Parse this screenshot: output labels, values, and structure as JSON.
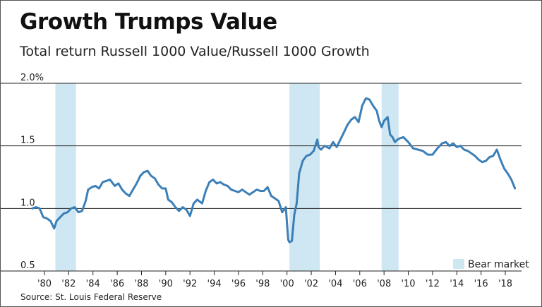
{
  "title": "Growth Trumps Value",
  "subtitle": "Total return Russell 1000 Value/Russell 1000 Growth",
  "source": "Source: St. Louis Federal Reserve",
  "colors": {
    "line": "#3b7fb8",
    "bear_band": "#cfe7f3",
    "grid": "#222222"
  },
  "chart_data": {
    "type": "line",
    "title": "Growth Trumps Value",
    "subtitle": "Total return Russell 1000 Value/Russell 1000 Growth",
    "xlabel": "",
    "ylabel": "",
    "xlim": [
      1979,
      2019.5
    ],
    "ylim": [
      0.5,
      2.0
    ],
    "y_ticks": [
      {
        "value": 2.0,
        "label": "2.0%"
      },
      {
        "value": 1.5,
        "label": "1.5"
      },
      {
        "value": 1.0,
        "label": "1.0"
      },
      {
        "value": 0.5,
        "label": "0.5"
      }
    ],
    "x_ticks": [
      {
        "value": 1980,
        "label": "'80"
      },
      {
        "value": 1982,
        "label": "'82"
      },
      {
        "value": 1984,
        "label": "'84"
      },
      {
        "value": 1986,
        "label": "'86"
      },
      {
        "value": 1988,
        "label": "'88"
      },
      {
        "value": 1990,
        "label": "'90"
      },
      {
        "value": 1992,
        "label": "'92"
      },
      {
        "value": 1994,
        "label": "'94"
      },
      {
        "value": 1996,
        "label": "'96"
      },
      {
        "value": 1998,
        "label": "'98"
      },
      {
        "value": 2000,
        "label": "'00"
      },
      {
        "value": 2002,
        "label": "'02"
      },
      {
        "value": 2004,
        "label": "'04"
      },
      {
        "value": 2006,
        "label": "'06"
      },
      {
        "value": 2008,
        "label": "'08"
      },
      {
        "value": 2010,
        "label": "'10"
      },
      {
        "value": 2012,
        "label": "'12"
      },
      {
        "value": 2014,
        "label": "'14"
      },
      {
        "value": 2016,
        "label": "'16"
      },
      {
        "value": 2018,
        "label": "'18"
      }
    ],
    "grid": "horizontal",
    "legend": {
      "position": "bottom-right",
      "entries": [
        "Bear market"
      ]
    },
    "bear_markets": [
      {
        "start": 1980.9,
        "end": 1982.6
      },
      {
        "start": 2000.2,
        "end": 2002.7
      },
      {
        "start": 2007.8,
        "end": 2009.2
      }
    ],
    "series": [
      {
        "x": [
          1979.0,
          1979.3,
          1979.6,
          1979.9,
          1980.2,
          1980.5,
          1980.8,
          1981.0,
          1981.3,
          1981.6,
          1981.9,
          1982.2,
          1982.5,
          1982.8,
          1983.1,
          1983.4,
          1983.6,
          1983.9,
          1984.2,
          1984.5,
          1984.8,
          1985.1,
          1985.4,
          1985.8,
          1986.1,
          1986.4,
          1986.7,
          1987.0,
          1987.3,
          1987.6,
          1987.9,
          1988.2,
          1988.5,
          1988.8,
          1989.1,
          1989.4,
          1989.7,
          1990.0,
          1990.2,
          1990.5,
          1990.8,
          1991.1,
          1991.4,
          1991.7,
          1992.0,
          1992.3,
          1992.6,
          1993.0,
          1993.3,
          1993.6,
          1993.9,
          1994.2,
          1994.5,
          1994.8,
          1995.1,
          1995.4,
          1995.7,
          1996.0,
          1996.3,
          1996.6,
          1996.9,
          1997.2,
          1997.5,
          1997.8,
          1998.1,
          1998.4,
          1998.7,
          1999.0,
          1999.3,
          1999.6,
          1999.9,
          2000.1,
          2000.2,
          2000.4,
          2000.6,
          2000.8,
          2001.0,
          2001.3,
          2001.6,
          2001.9,
          2002.2,
          2002.5,
          2002.6,
          2002.8,
          2003.1,
          2003.5,
          2003.8,
          2004.1,
          2004.4,
          2004.7,
          2005.0,
          2005.3,
          2005.6,
          2005.9,
          2006.2,
          2006.5,
          2006.8,
          2007.1,
          2007.4,
          2007.6,
          2007.8,
          2008.0,
          2008.3,
          2008.5,
          2008.7,
          2008.9,
          2009.1,
          2009.3,
          2009.6,
          2010.0,
          2010.4,
          2010.8,
          2011.2,
          2011.6,
          2012.0,
          2012.4,
          2012.8,
          2013.1,
          2013.4,
          2013.7,
          2014.0,
          2014.3,
          2014.6,
          2014.9,
          2015.2,
          2015.5,
          2015.8,
          2016.1,
          2016.4,
          2016.7,
          2017.0,
          2017.3,
          2017.6,
          2017.9,
          2018.2,
          2018.5,
          2018.8
        ],
        "values": [
          1.0,
          1.01,
          1.0,
          0.93,
          0.92,
          0.9,
          0.84,
          0.9,
          0.93,
          0.96,
          0.97,
          1.0,
          1.01,
          0.97,
          0.98,
          1.06,
          1.15,
          1.17,
          1.18,
          1.16,
          1.21,
          1.22,
          1.23,
          1.18,
          1.2,
          1.15,
          1.12,
          1.1,
          1.15,
          1.2,
          1.26,
          1.29,
          1.3,
          1.26,
          1.24,
          1.19,
          1.16,
          1.16,
          1.07,
          1.05,
          1.01,
          0.98,
          1.01,
          0.99,
          0.94,
          1.04,
          1.07,
          1.04,
          1.14,
          1.21,
          1.23,
          1.2,
          1.21,
          1.19,
          1.18,
          1.15,
          1.14,
          1.13,
          1.15,
          1.13,
          1.11,
          1.13,
          1.15,
          1.14,
          1.14,
          1.17,
          1.1,
          1.08,
          1.06,
          0.97,
          1.01,
          0.75,
          0.73,
          0.74,
          0.95,
          1.04,
          1.28,
          1.38,
          1.42,
          1.43,
          1.46,
          1.55,
          1.49,
          1.47,
          1.5,
          1.48,
          1.53,
          1.49,
          1.55,
          1.61,
          1.67,
          1.71,
          1.73,
          1.69,
          1.82,
          1.88,
          1.87,
          1.82,
          1.78,
          1.7,
          1.65,
          1.7,
          1.73,
          1.59,
          1.57,
          1.53,
          1.55,
          1.56,
          1.57,
          1.53,
          1.48,
          1.47,
          1.46,
          1.43,
          1.43,
          1.48,
          1.52,
          1.53,
          1.5,
          1.52,
          1.49,
          1.5,
          1.47,
          1.46,
          1.44,
          1.42,
          1.39,
          1.37,
          1.38,
          1.41,
          1.42,
          1.47,
          1.39,
          1.32,
          1.28,
          1.23,
          1.16
        ]
      }
    ]
  }
}
